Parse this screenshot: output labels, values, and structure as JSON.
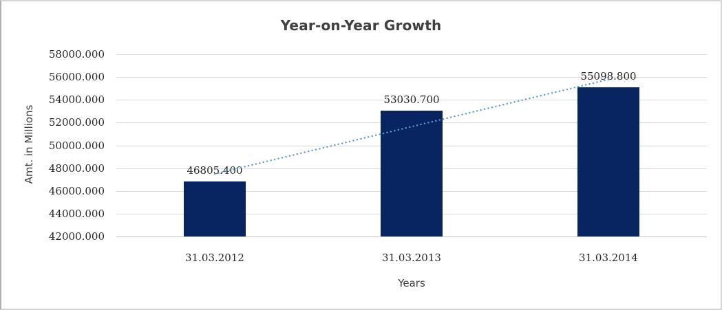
{
  "chart_data": {
    "type": "bar",
    "title": "Year-on-Year Growth",
    "xlabel": "Years",
    "ylabel": "Amt. in Millions",
    "categories": [
      "31.03.2012",
      "31.03.2013",
      "31.03.2014"
    ],
    "values": [
      46805.4,
      53030.7,
      55098.8
    ],
    "data_labels": [
      "46805.400",
      "53030.700",
      "55098.800"
    ],
    "y_ticks": [
      "58000.000",
      "56000.000",
      "54000.000",
      "52000.000",
      "50000.000",
      "48000.000",
      "46000.000",
      "44000.000",
      "42000.000"
    ],
    "ylim": [
      42000,
      58000
    ],
    "y_step": 2000,
    "grid": true,
    "legend": "none",
    "bar_color": "#092561",
    "gridline_color": "#dadada",
    "axis_line_color": "#c6c6c6",
    "title_color": "#404040",
    "trendline": {
      "type": "linear",
      "style": "dotted",
      "color": "#5b9bd5",
      "from_value": 47498.3,
      "to_value": 55791.6
    }
  }
}
